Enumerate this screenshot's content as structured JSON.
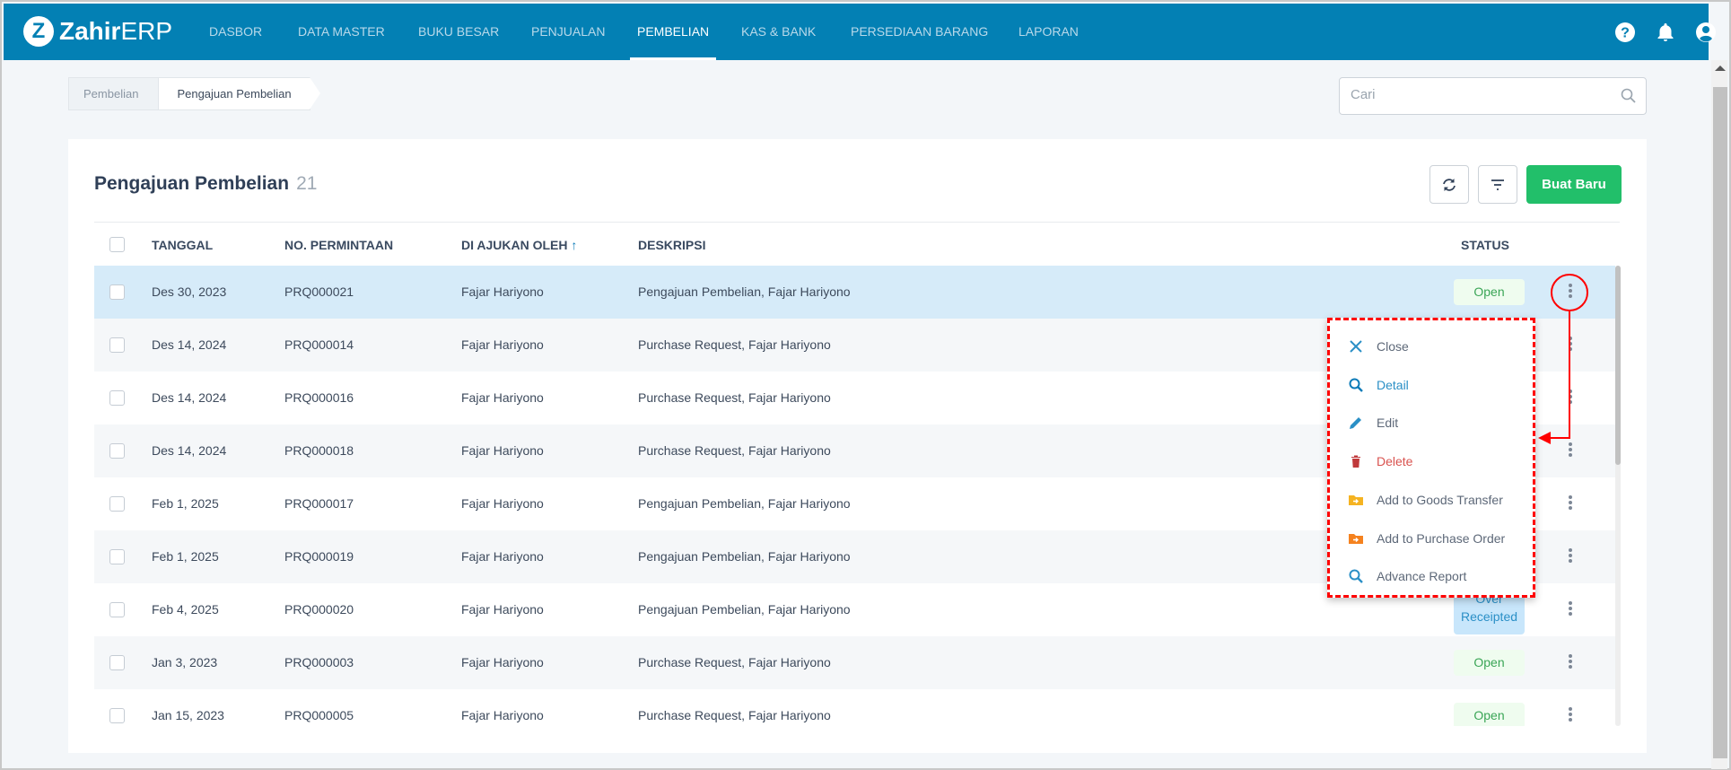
{
  "nav": {
    "logo": {
      "mark": "Z",
      "brand_bold": "Zahir",
      "brand_light": "ERP"
    },
    "items": [
      {
        "label": "DASBOR"
      },
      {
        "label": "DATA MASTER"
      },
      {
        "label": "BUKU BESAR"
      },
      {
        "label": "PENJUALAN"
      },
      {
        "label": "PEMBELIAN",
        "active": true
      },
      {
        "label": "KAS & BANK"
      },
      {
        "label": "PERSEDIAAN BARANG"
      },
      {
        "label": "LAPORAN"
      }
    ],
    "icons": [
      "help-icon",
      "bell-icon",
      "user-icon"
    ]
  },
  "breadcrumb": [
    {
      "label": "Pembelian"
    },
    {
      "label": "Pengajuan Pembelian"
    }
  ],
  "search": {
    "placeholder": "Cari",
    "value": ""
  },
  "page": {
    "title": "Pengajuan Pembelian",
    "count": "21",
    "create_label": "Buat Baru"
  },
  "table": {
    "headers": {
      "tanggal": "TANGGAL",
      "no": "NO. PERMINTAAN",
      "oleh": "DI AJUKAN OLEH",
      "deskripsi": "DESKRIPSI",
      "status": "STATUS"
    },
    "sort": {
      "column": "oleh",
      "direction": "asc"
    },
    "rows": [
      {
        "tanggal": "Des 30, 2023",
        "no": "PRQ000021",
        "oleh": "Fajar Hariyono",
        "deskripsi": "Pengajuan Pembelian, Fajar Hariyono",
        "status": "Open",
        "selected": true
      },
      {
        "tanggal": "Des 14, 2024",
        "no": "PRQ000014",
        "oleh": "Fajar Hariyono",
        "deskripsi": "Purchase Request, Fajar Hariyono",
        "status": ""
      },
      {
        "tanggal": "Des 14, 2024",
        "no": "PRQ000016",
        "oleh": "Fajar Hariyono",
        "deskripsi": "Purchase Request, Fajar Hariyono",
        "status": ""
      },
      {
        "tanggal": "Des 14, 2024",
        "no": "PRQ000018",
        "oleh": "Fajar Hariyono",
        "deskripsi": "Purchase Request, Fajar Hariyono",
        "status": ""
      },
      {
        "tanggal": "Feb 1, 2025",
        "no": "PRQ000017",
        "oleh": "Fajar Hariyono",
        "deskripsi": "Pengajuan Pembelian, Fajar Hariyono",
        "status": ""
      },
      {
        "tanggal": "Feb 1, 2025",
        "no": "PRQ000019",
        "oleh": "Fajar Hariyono",
        "deskripsi": "Pengajuan Pembelian, Fajar Hariyono",
        "status": ""
      },
      {
        "tanggal": "Feb 4, 2025",
        "no": "PRQ000020",
        "oleh": "Fajar Hariyono",
        "deskripsi": "Pengajuan Pembelian, Fajar Hariyono",
        "status": "Over Receipted"
      },
      {
        "tanggal": "Jan 3, 2023",
        "no": "PRQ000003",
        "oleh": "Fajar Hariyono",
        "deskripsi": "Purchase Request, Fajar Hariyono",
        "status": "Open"
      },
      {
        "tanggal": "Jan 15, 2023",
        "no": "PRQ000005",
        "oleh": "Fajar Hariyono",
        "deskripsi": "Purchase Request, Fajar Hariyono",
        "status": "Open"
      }
    ]
  },
  "context_menu": {
    "items": [
      {
        "label": "Close",
        "icon": "close-icon",
        "color": "#5d6878",
        "icon_color": "#2a8fc6"
      },
      {
        "label": "Detail",
        "icon": "search-icon",
        "color": "#2a8fc6",
        "icon_color": "#0c7bb8"
      },
      {
        "label": "Edit",
        "icon": "pencil-icon",
        "color": "#5d6878",
        "icon_color": "#2a8fc6"
      },
      {
        "label": "Delete",
        "icon": "trash-icon",
        "color": "#d9534f",
        "icon_color": "#c0393b"
      },
      {
        "label": "Add to Goods Transfer",
        "icon": "folder-arrow-icon",
        "color": "#5d6878",
        "icon_color": "#f5b321"
      },
      {
        "label": "Add to Purchase Order",
        "icon": "folder-arrow-icon",
        "color": "#5d6878",
        "icon_color": "#f5821f"
      },
      {
        "label": "Advance Report",
        "icon": "search-icon",
        "color": "#5d6878",
        "icon_color": "#2a8fc6"
      }
    ]
  },
  "colors": {
    "nav": "#0380b4",
    "primary_button": "#22bf6a",
    "annotation": "#ff0000"
  }
}
